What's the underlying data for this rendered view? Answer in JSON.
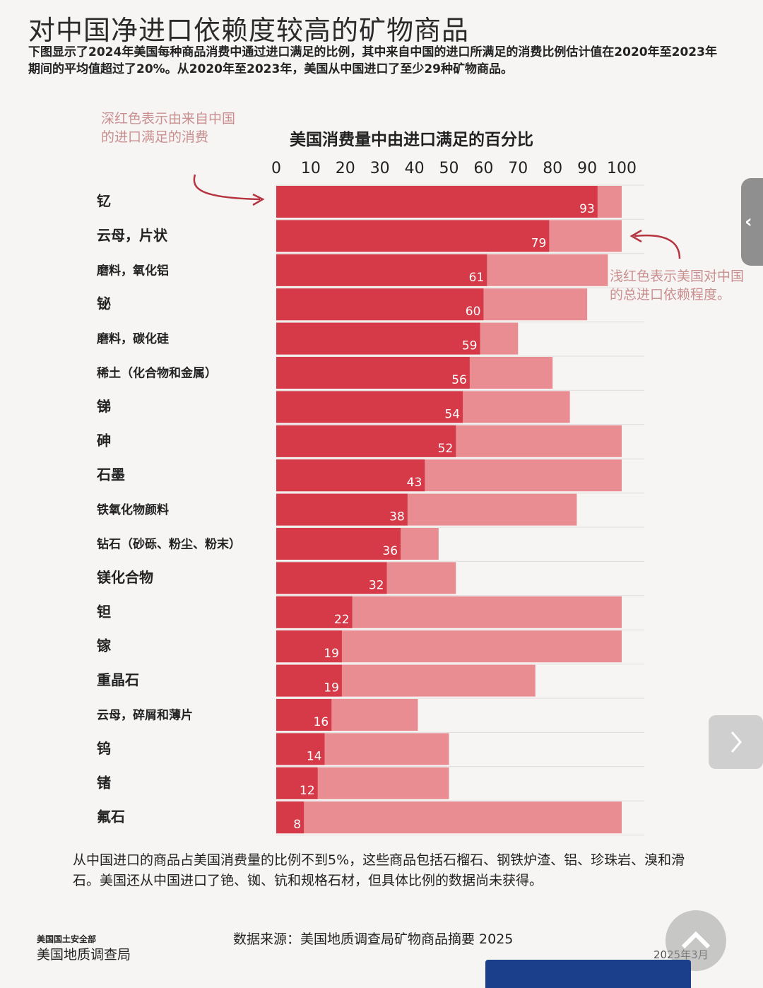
{
  "header": {
    "title": "对中国净进口依赖度较高的矿物商品",
    "subtitle": "下图显示了2024年美国每种商品消费中通过进口满足的比例，其中来自中国的进口所满足的消费比例估计值在2020年至2023年期间的平均值超过了20%。从2020年至2023年，美国从中国进口了至少29种矿物商品。"
  },
  "annotations": {
    "dark_red": "深红色表示由来自中国的进口满足的消费",
    "light_red": "浅红色表示美国对中国的总进口依赖程度。"
  },
  "colors": {
    "china_share": "#d63a48",
    "total_import": "#e98d93",
    "arrow": "#b5343f",
    "annotation_text": "#c98f8f"
  },
  "chart_data": {
    "type": "bar",
    "orientation": "horizontal",
    "stacked": "overlay",
    "xlabel": "美国消费量中由进口满足的百分比",
    "xlim": [
      0,
      100
    ],
    "xticks": [
      0,
      10,
      20,
      30,
      40,
      50,
      60,
      70,
      80,
      90,
      100
    ],
    "grid": true,
    "categories": [
      "钇",
      "云母，片状",
      "磨料，氧化铝",
      "铋",
      "磨料，碳化硅",
      "稀土（化合物和金属）",
      "锑",
      "砷",
      "石墨",
      "铁氧化物颜料",
      "钻石（砂砾、粉尘、粉末）",
      "镁化合物",
      "钽",
      "镓",
      "重晶石",
      "云母，碎屑和薄片",
      "钨",
      "锗",
      "氟石"
    ],
    "series": [
      {
        "values": [
          93,
          79,
          61,
          60,
          59,
          56,
          54,
          52,
          43,
          38,
          36,
          32,
          22,
          19,
          19,
          16,
          14,
          12,
          8
        ]
      },
      {
        "values": [
          100,
          100,
          96,
          90,
          70,
          80,
          85,
          100,
          100,
          87,
          47,
          52,
          100,
          100,
          75,
          41,
          50,
          50,
          100
        ]
      }
    ]
  },
  "footer": {
    "note": "从中国进口的商品占美国消费量的比例不到5%，这些商品包括石榴石、钢铁炉渣、铝、珍珠岩、溴和滑石。美国还从中国进口了铯、铷、钪和规格石材，但具体比例的数据尚未获得。",
    "source": "数据来源：美国地质调查局矿物商品摘要 2025",
    "org_line1": "美国国土安全部",
    "org_line2": "美国地质调查局",
    "date": "2025年3月"
  },
  "nav": {
    "prev_label": "‹",
    "prev_icon": "chevron-left-icon",
    "next_icon": "chevron-right-icon",
    "fab_icon": "chevron-up-icon"
  }
}
